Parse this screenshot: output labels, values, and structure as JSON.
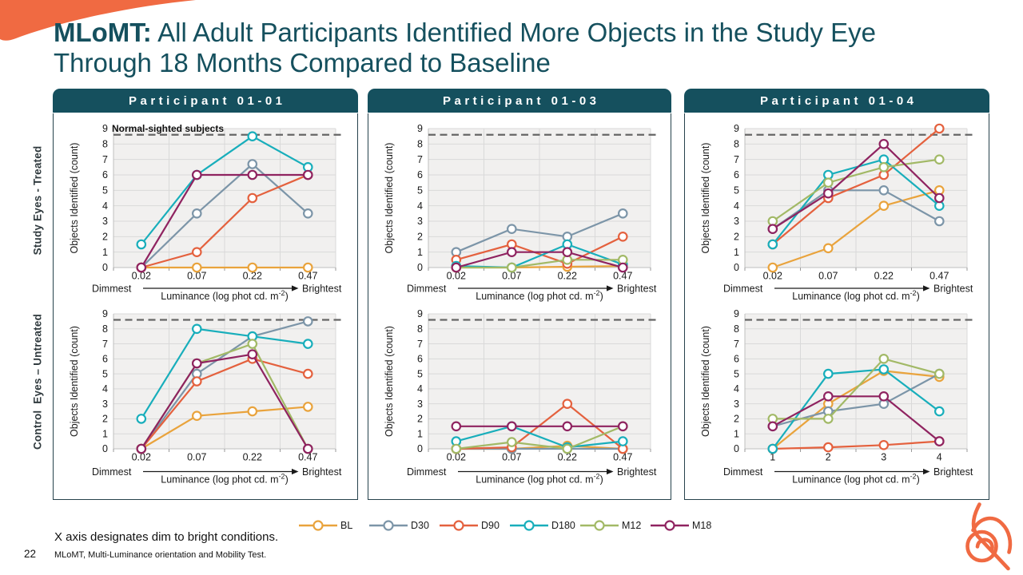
{
  "title": {
    "bold": "MLoMT:",
    "rest": " All Adult Participants Identified More Objects in the Study Eye Through 18 Months Compared to Baseline"
  },
  "row_labels": [
    "Study Eyes - Treated",
    "Control  Eyes – Untreated"
  ],
  "panels": [
    "Participant 01-01",
    "Participant 01-03",
    "Participant 01-04"
  ],
  "footer": {
    "note": "X axis designates dim to bright conditions.",
    "page": "22",
    "citation": "MLoMT, Multi-Luminance orientation and Mobility Test."
  },
  "legend": [
    {
      "label": "BL",
      "color": "#E9A33C"
    },
    {
      "label": "D30",
      "color": "#7C95A8"
    },
    {
      "label": "D90",
      "color": "#E4613E"
    },
    {
      "label": "D180",
      "color": "#18AEBB"
    },
    {
      "label": "M12",
      "color": "#A2B966"
    },
    {
      "label": "M18",
      "color": "#8F2360"
    }
  ],
  "colors": {
    "accent_teal": "#15505e",
    "accent_orange": "#F06A42",
    "plot_bg": "#f1f0ef",
    "grid": "#d9d9d9",
    "axis": "#bfbfbf",
    "dashed": "#666666"
  },
  "axis": {
    "ylabel": "Objects Identified (count)",
    "xlabel": "Luminance (log phot cd. m",
    "xlabel_sup": "-2",
    "xlabel_end": ")",
    "dimmest": "Dimmest",
    "brightest": "Brightest",
    "ymin": 0,
    "ymax": 9,
    "normal_line": 8.6
  },
  "chart_data": [
    {
      "type": "line",
      "participant": "Participant 01-01",
      "row": "study",
      "annotation": "Normal-sighted subjects",
      "categories": [
        "0.02",
        "0.07",
        "0.22",
        "0.47"
      ],
      "ylim": [
        0,
        9
      ],
      "threshold": 8.6,
      "series": [
        {
          "name": "BL",
          "values": [
            0,
            0,
            0,
            0
          ]
        },
        {
          "name": "D30",
          "values": [
            0,
            3.5,
            6.7,
            3.5
          ]
        },
        {
          "name": "D90",
          "values": [
            0,
            1,
            4.5,
            6
          ]
        },
        {
          "name": "D180",
          "values": [
            1.5,
            6,
            8.5,
            6.5
          ]
        },
        {
          "name": "M12",
          "values": null
        },
        {
          "name": "M18",
          "values": [
            0,
            6,
            6,
            6
          ]
        }
      ]
    },
    {
      "type": "line",
      "participant": "Participant 01-03",
      "row": "study",
      "categories": [
        "0.02",
        "0.07",
        "0.22",
        "0.47"
      ],
      "ylim": [
        0,
        9
      ],
      "threshold": 8.6,
      "series": [
        {
          "name": "BL",
          "values": [
            0,
            0,
            0.05,
            0.1
          ]
        },
        {
          "name": "D30",
          "values": [
            1,
            2.5,
            2,
            3.5
          ]
        },
        {
          "name": "D90",
          "values": [
            0.5,
            1.5,
            0.25,
            2
          ]
        },
        {
          "name": "D180",
          "values": [
            0.1,
            0,
            1.5,
            0.2
          ]
        },
        {
          "name": "M12",
          "values": [
            0,
            0,
            0.5,
            0.5
          ]
        },
        {
          "name": "M18",
          "values": [
            0,
            1,
            1,
            0
          ]
        }
      ]
    },
    {
      "type": "line",
      "participant": "Participant 01-04",
      "row": "study",
      "categories": [
        "0.02",
        "0.07",
        "0.22",
        "0.47"
      ],
      "ylim": [
        0,
        9
      ],
      "threshold": 8.6,
      "series": [
        {
          "name": "BL",
          "values": [
            0,
            1.25,
            4,
            5
          ]
        },
        {
          "name": "D30",
          "values": [
            2.5,
            5,
            5,
            3
          ]
        },
        {
          "name": "D90",
          "values": [
            1.5,
            4.5,
            6,
            9
          ]
        },
        {
          "name": "D180",
          "values": [
            1.5,
            6,
            7,
            4
          ]
        },
        {
          "name": "M12",
          "values": [
            3,
            5.5,
            6.5,
            7
          ]
        },
        {
          "name": "M18",
          "values": [
            2.5,
            4.8,
            8,
            4.5
          ]
        }
      ]
    },
    {
      "type": "line",
      "participant": "Participant 01-01",
      "row": "control",
      "categories": [
        "0.02",
        "0.07",
        "0.22",
        "0.47"
      ],
      "ylim": [
        0,
        9
      ],
      "threshold": 8.6,
      "series": [
        {
          "name": "BL",
          "values": [
            0,
            2.2,
            2.5,
            2.8
          ]
        },
        {
          "name": "D30",
          "values": [
            0,
            5,
            7.5,
            8.5
          ]
        },
        {
          "name": "D90",
          "values": [
            0,
            4.5,
            6,
            5
          ]
        },
        {
          "name": "D180",
          "values": [
            2,
            8,
            7.5,
            7
          ]
        },
        {
          "name": "M12",
          "values": [
            0,
            5.7,
            7,
            0
          ]
        },
        {
          "name": "M18",
          "values": [
            0,
            5.7,
            6.3,
            0
          ]
        }
      ]
    },
    {
      "type": "line",
      "participant": "Participant 01-03",
      "row": "control",
      "categories": [
        "0.02",
        "0.07",
        "0.22",
        "0.47"
      ],
      "ylim": [
        0,
        9
      ],
      "threshold": 8.6,
      "series": [
        {
          "name": "BL",
          "values": [
            0,
            0,
            0.2,
            0
          ]
        },
        {
          "name": "D30",
          "values": [
            0,
            0,
            0,
            0
          ]
        },
        {
          "name": "D90",
          "values": [
            0,
            0.1,
            3,
            0
          ]
        },
        {
          "name": "D180",
          "values": [
            0.5,
            1.5,
            0.1,
            0.5
          ]
        },
        {
          "name": "M12",
          "values": [
            0,
            0.45,
            0,
            1.5
          ]
        },
        {
          "name": "M18",
          "values": [
            1.5,
            1.5,
            1.5,
            1.5
          ]
        }
      ]
    },
    {
      "type": "line",
      "participant": "Participant 01-04",
      "row": "control",
      "categories": [
        "1",
        "2",
        "3",
        "4"
      ],
      "ylim": [
        0,
        9
      ],
      "threshold": 8.6,
      "series": [
        {
          "name": "BL",
          "values": [
            0,
            3,
            5.2,
            4.8
          ]
        },
        {
          "name": "D30",
          "values": [
            1.5,
            2.5,
            3,
            5
          ]
        },
        {
          "name": "D90",
          "values": [
            0,
            0.1,
            0.25,
            0.5
          ]
        },
        {
          "name": "D180",
          "values": [
            0,
            5,
            5.3,
            2.5
          ]
        },
        {
          "name": "M12",
          "values": [
            2,
            2,
            6,
            5
          ]
        },
        {
          "name": "M18",
          "values": [
            1.5,
            3.5,
            3.5,
            0.5
          ]
        }
      ]
    }
  ]
}
